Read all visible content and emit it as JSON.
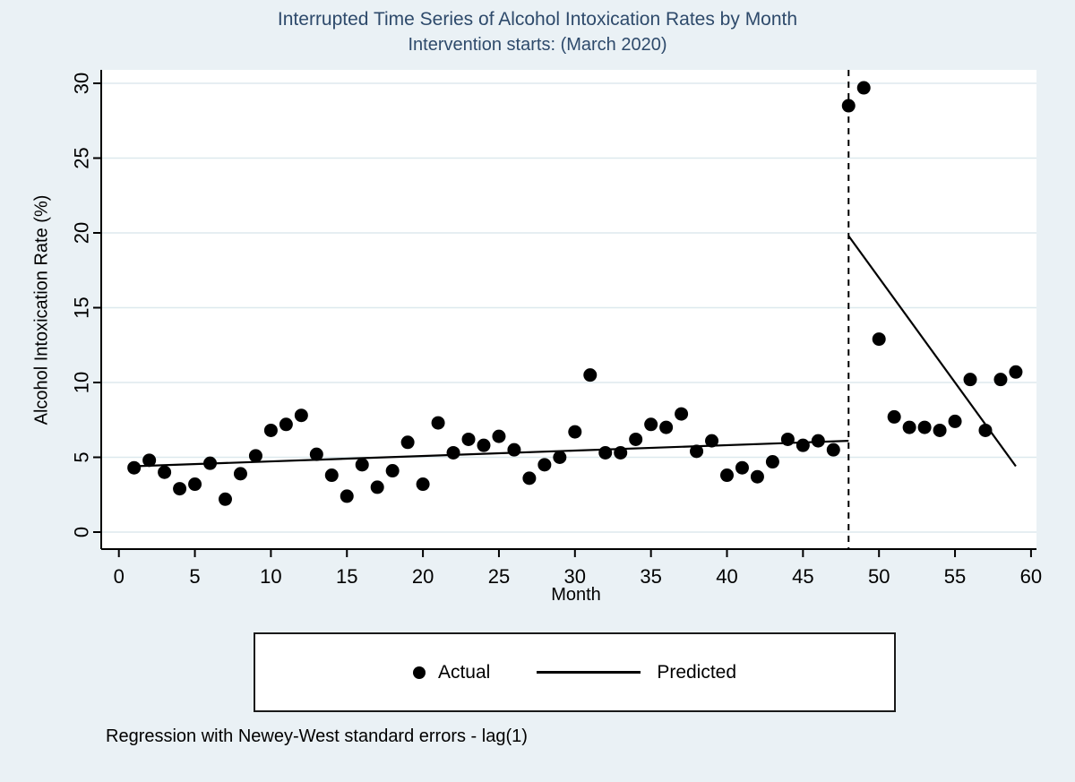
{
  "chart_data": {
    "type": "scatter",
    "title": "Interrupted Time Series of Alcohol Intoxication Rates by Month",
    "subtitle": "Intervention starts: (March 2020)",
    "xlabel": "Month",
    "ylabel": "Alcohol Intoxication Rate (%)",
    "note": "Regression with Newey-West standard errors - lag(1)",
    "xlim": [
      0,
      60
    ],
    "ylim": [
      0,
      30
    ],
    "xticks": [
      0,
      5,
      10,
      15,
      20,
      25,
      30,
      35,
      40,
      45,
      50,
      55,
      60
    ],
    "yticks": [
      0,
      5,
      10,
      15,
      20,
      25,
      30
    ],
    "grid": "horizontal",
    "legend_position": "below",
    "intervention": {
      "x": 48,
      "style": "dashed-vertical-line"
    },
    "series": [
      {
        "name": "Actual",
        "type": "scatter",
        "marker": "filled-circle",
        "color": "#000000",
        "points": [
          [
            1,
            4.3
          ],
          [
            2,
            4.8
          ],
          [
            3,
            4.0
          ],
          [
            4,
            2.9
          ],
          [
            5,
            3.2
          ],
          [
            6,
            4.6
          ],
          [
            7,
            2.2
          ],
          [
            8,
            3.9
          ],
          [
            9,
            5.1
          ],
          [
            10,
            6.8
          ],
          [
            11,
            7.2
          ],
          [
            12,
            7.8
          ],
          [
            13,
            5.2
          ],
          [
            14,
            3.8
          ],
          [
            15,
            2.4
          ],
          [
            16,
            4.5
          ],
          [
            17,
            3.0
          ],
          [
            18,
            4.1
          ],
          [
            19,
            6.0
          ],
          [
            20,
            3.2
          ],
          [
            21,
            7.3
          ],
          [
            22,
            5.3
          ],
          [
            23,
            6.2
          ],
          [
            24,
            5.8
          ],
          [
            25,
            6.4
          ],
          [
            26,
            5.5
          ],
          [
            27,
            3.6
          ],
          [
            28,
            4.5
          ],
          [
            29,
            5.0
          ],
          [
            30,
            6.7
          ],
          [
            31,
            10.5
          ],
          [
            32,
            5.3
          ],
          [
            33,
            5.3
          ],
          [
            34,
            6.2
          ],
          [
            35,
            7.2
          ],
          [
            36,
            7.0
          ],
          [
            37,
            7.9
          ],
          [
            38,
            5.4
          ],
          [
            39,
            6.1
          ],
          [
            40,
            3.8
          ],
          [
            41,
            4.3
          ],
          [
            42,
            3.7
          ],
          [
            43,
            4.7
          ],
          [
            44,
            6.2
          ],
          [
            45,
            5.8
          ],
          [
            46,
            6.1
          ],
          [
            47,
            5.5
          ],
          [
            48,
            28.5
          ],
          [
            49,
            29.7
          ],
          [
            50,
            12.9
          ],
          [
            51,
            7.7
          ],
          [
            52,
            7.0
          ],
          [
            53,
            7.0
          ],
          [
            54,
            6.8
          ],
          [
            55,
            7.4
          ],
          [
            56,
            10.2
          ],
          [
            57,
            6.8
          ],
          [
            58,
            10.2
          ],
          [
            59,
            10.7
          ]
        ]
      },
      {
        "name": "Predicted",
        "type": "line",
        "color": "#000000",
        "segments": [
          [
            [
              1,
              4.4
            ],
            [
              48,
              6.1
            ]
          ],
          [
            [
              48,
              19.8
            ],
            [
              59,
              4.4
            ]
          ]
        ]
      }
    ],
    "colors": {
      "background": "#eaf1f5",
      "plot_background": "#ffffff",
      "gridline": "#dde9ee",
      "title_text": "#2e4a6b",
      "axis_text": "#000000",
      "axis_line": "#000000"
    }
  }
}
